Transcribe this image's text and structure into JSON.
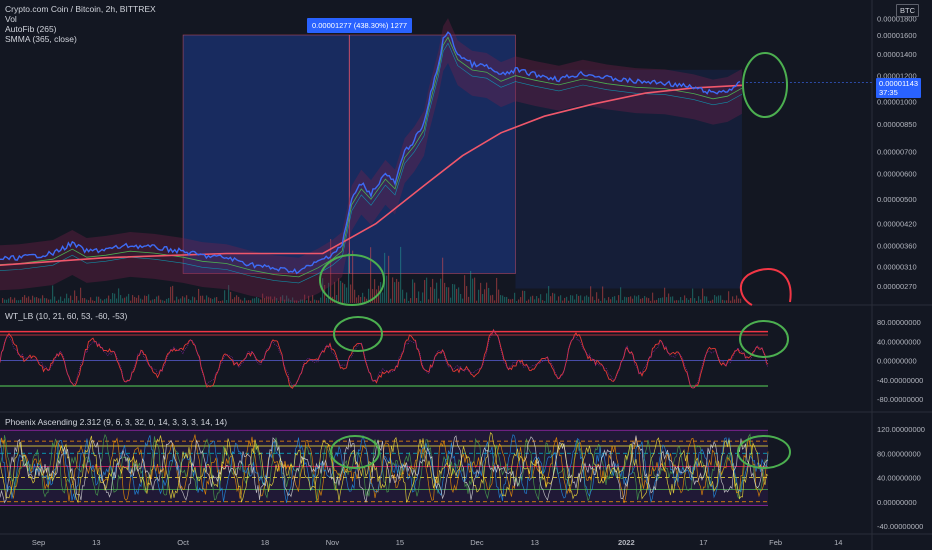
{
  "chart_info": {
    "title": "Crypto.com Coin / Bitcoin, 2h, BITTREX",
    "indicators": [
      "Vol",
      "AutoFib (265)",
      "SMMA (365, close)"
    ],
    "currency": "BTC",
    "last_price": "0.00001143",
    "countdown": "37:35",
    "measure_label": "0.00001277 (438.30%) 1277"
  },
  "colors": {
    "background": "#131722",
    "price_line": "#3d6bf5",
    "smma_line": "#f0576b",
    "measure_box": "#2962ff",
    "annotation_green": "#4caf50",
    "annotation_red": "#f23645"
  },
  "chart_data": [
    {
      "type": "line",
      "panel": "price",
      "series": [
        {
          "name": "Crypto.com Coin / Bitcoin",
          "points": [
            [
              "2021-08-20",
              3.25e-06
            ],
            [
              "2021-08-28",
              3.3e-06
            ],
            [
              "2021-09-04",
              3.4e-06
            ],
            [
              "2021-09-08",
              3.65e-06
            ],
            [
              "2021-09-11",
              3.45e-06
            ],
            [
              "2021-09-15",
              3.5e-06
            ],
            [
              "2021-09-20",
              3.6e-06
            ],
            [
              "2021-09-25",
              3.55e-06
            ],
            [
              "2021-10-01",
              3.45e-06
            ],
            [
              "2021-10-05",
              3.35e-06
            ],
            [
              "2021-10-10",
              3.3e-06
            ],
            [
              "2021-10-15",
              3.15e-06
            ],
            [
              "2021-10-20",
              3.05e-06
            ],
            [
              "2021-10-25",
              3e-06
            ],
            [
              "2021-10-29",
              3.2e-06
            ],
            [
              "2021-11-01",
              3.4e-06
            ],
            [
              "2021-11-03",
              3.6e-06
            ],
            [
              "2021-11-05",
              5e-06
            ],
            [
              "2021-11-07",
              5.6e-06
            ],
            [
              "2021-11-09",
              5.2e-06
            ],
            [
              "2021-11-12",
              6e-06
            ],
            [
              "2021-11-14",
              5.6e-06
            ],
            [
              "2021-11-16",
              7e-06
            ],
            [
              "2021-11-18",
              7.6e-06
            ],
            [
              "2021-11-20",
              8.5e-06
            ],
            [
              "2021-11-21",
              1e-05
            ],
            [
              "2021-11-23",
              1.3e-05
            ],
            [
              "2021-11-24",
              1.55e-05
            ],
            [
              "2021-11-25",
              1.64e-05
            ],
            [
              "2021-11-27",
              1.4e-05
            ],
            [
              "2021-11-30",
              1.3e-05
            ],
            [
              "2021-12-03",
              1.28e-05
            ],
            [
              "2021-12-06",
              1.2e-05
            ],
            [
              "2021-12-09",
              1.25e-05
            ],
            [
              "2021-12-13",
              1.21e-05
            ],
            [
              "2021-12-18",
              1.17e-05
            ],
            [
              "2021-12-23",
              1.22e-05
            ],
            [
              "2021-12-28",
              1.18e-05
            ],
            [
              "2022-01-03",
              1.15e-05
            ],
            [
              "2022-01-09",
              1.14e-05
            ],
            [
              "2022-01-15",
              1.1e-05
            ],
            [
              "2022-01-19",
              1.06e-05
            ],
            [
              "2022-01-22",
              1.08e-05
            ],
            [
              "2022-01-25",
              1.143e-05
            ]
          ]
        },
        {
          "name": "SMMA (365, close)",
          "points": [
            [
              "2021-08-20",
              3.1e-06
            ],
            [
              "2021-09-15",
              3.3e-06
            ],
            [
              "2021-10-10",
              3.4e-06
            ],
            [
              "2021-10-30",
              3.4e-06
            ],
            [
              "2021-11-10",
              4.2e-06
            ],
            [
              "2021-11-20",
              5.5e-06
            ],
            [
              "2021-11-28",
              6.8e-06
            ],
            [
              "2021-12-06",
              8e-06
            ],
            [
              "2021-12-15",
              9e-06
            ],
            [
              "2021-12-25",
              9.8e-06
            ],
            [
              "2022-01-05",
              1.06e-05
            ],
            [
              "2022-01-15",
              1.1e-05
            ],
            [
              "2022-01-25",
              1.12e-05
            ]
          ]
        }
      ],
      "yaxis": {
        "scale": "log",
        "ticks": [
          "0.00001800",
          "0.00001600",
          "0.00001400",
          "0.00001200",
          "0.00001000",
          "0.00000850",
          "0.00000700",
          "0.00000600",
          "0.00000500",
          "0.00000420",
          "0.00000360",
          "0.00000310",
          "0.00000270"
        ]
      }
    },
    {
      "type": "line",
      "panel": "wavetrend",
      "title": "WT_LB (10, 21, 60, 53, -60, -53)",
      "levels": [
        60,
        53,
        0,
        -53,
        -60
      ],
      "yaxis": {
        "ticks": [
          "80.00000000",
          "40.00000000",
          "0.00000000",
          "-40.00000000",
          "-80.00000000"
        ]
      }
    },
    {
      "type": "line",
      "panel": "phoenix",
      "title": "Phoenix Ascending 2.312 (9, 6, 3, 32, 0, 14, 3, 3, 3, 14, 14)",
      "yaxis": {
        "ticks": [
          "120.00000000",
          "80.00000000",
          "40.00000000",
          "0.00000000",
          "-40.00000000"
        ]
      }
    }
  ],
  "xaxis": {
    "ticks": [
      {
        "label": "Sep",
        "date": "2021-09-01"
      },
      {
        "label": "13",
        "date": "2021-09-13"
      },
      {
        "label": "Oct",
        "date": "2021-10-01"
      },
      {
        "label": "18",
        "date": "2021-10-18"
      },
      {
        "label": "Nov",
        "date": "2021-11-01"
      },
      {
        "label": "15",
        "date": "2021-11-15"
      },
      {
        "label": "Dec",
        "date": "2021-12-01"
      },
      {
        "label": "13",
        "date": "2021-12-13"
      },
      {
        "label": "2022",
        "date": "2022-01-01"
      },
      {
        "label": "17",
        "date": "2022-01-17"
      },
      {
        "label": "Feb",
        "date": "2022-02-01"
      },
      {
        "label": "14",
        "date": "2022-02-14"
      }
    ]
  }
}
